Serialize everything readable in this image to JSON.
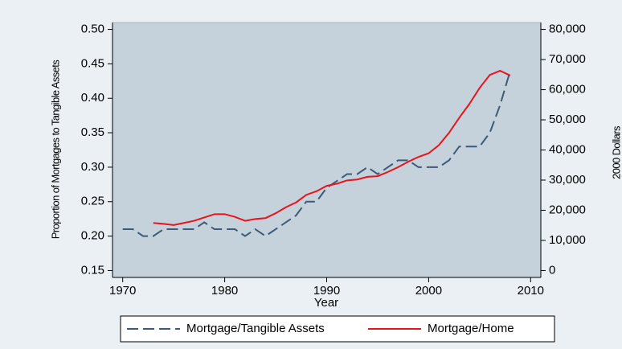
{
  "chart_data": {
    "type": "line",
    "xlabel": "Year",
    "ylabel": "Proportion of Mortgages to Tangible Assets",
    "y2label": "2000 Dollars",
    "xlim": [
      1969,
      2011
    ],
    "xticks": [
      1970,
      1980,
      1990,
      2000,
      2010
    ],
    "ylim": [
      0.14,
      0.51
    ],
    "yticks": [
      {
        "value": 0.15,
        "label": "0.15"
      },
      {
        "value": 0.2,
        "label": "0.20"
      },
      {
        "value": 0.25,
        "label": "0.25"
      },
      {
        "value": 0.3,
        "label": "0.30"
      },
      {
        "value": 0.35,
        "label": "0.35"
      },
      {
        "value": 0.4,
        "label": "0.40"
      },
      {
        "value": 0.45,
        "label": "0.45"
      },
      {
        "value": 0.5,
        "label": "0.50"
      }
    ],
    "y2lim": [
      -2286,
      82286
    ],
    "y2ticks": [
      0,
      {
        "value": 10000,
        "label": "10,000"
      },
      {
        "value": 20000,
        "label": "20,000"
      },
      {
        "value": 30000,
        "label": "30,000"
      },
      {
        "value": 40000,
        "label": "40,000"
      },
      {
        "value": 50000,
        "label": "50,000"
      },
      {
        "value": 60000,
        "label": "60,000"
      },
      {
        "value": 70000,
        "label": "70,000"
      },
      {
        "value": 80000,
        "label": "80,000"
      }
    ],
    "legend": "bottom",
    "series": [
      {
        "name": "Mortgage/Tangible Assets",
        "color": "#3d5a78",
        "line_style": "dashed",
        "x": [
          1970,
          1971,
          1972,
          1973,
          1974,
          1975,
          1976,
          1977,
          1978,
          1979,
          1980,
          1981,
          1982,
          1983,
          1984,
          1985,
          1986,
          1987,
          1988,
          1989,
          1990,
          1991,
          1992,
          1993,
          1994,
          1995,
          1996,
          1997,
          1998,
          1999,
          2000,
          2001,
          2002,
          2003,
          2004,
          2005,
          2006,
          2007,
          2008
        ],
        "values": [
          0.21,
          0.21,
          0.2,
          0.2,
          0.21,
          0.21,
          0.21,
          0.21,
          0.22,
          0.21,
          0.21,
          0.21,
          0.2,
          0.21,
          0.2,
          0.21,
          0.22,
          0.23,
          0.25,
          0.25,
          0.27,
          0.28,
          0.29,
          0.29,
          0.3,
          0.29,
          0.3,
          0.31,
          0.31,
          0.3,
          0.3,
          0.3,
          0.31,
          0.33,
          0.33,
          0.33,
          0.35,
          0.39,
          0.44
        ]
      },
      {
        "name": "Mortgage/Home",
        "color": "#e8141a",
        "line_style": "solid",
        "axis": "y2",
        "x": [
          1973,
          1974,
          1975,
          1976,
          1977,
          1978,
          1979,
          1980,
          1981,
          1982,
          1983,
          1984,
          1985,
          1986,
          1987,
          1988,
          1989,
          1990,
          1991,
          1992,
          1993,
          1994,
          1995,
          1996,
          1997,
          1998,
          1999,
          2000,
          2001,
          2002,
          2003,
          2004,
          2005,
          2006,
          2007,
          2008
        ],
        "values": [
          15800,
          15500,
          15100,
          15800,
          16500,
          17600,
          18700,
          18700,
          17800,
          16500,
          17100,
          17400,
          19000,
          21000,
          22600,
          25100,
          26300,
          28100,
          28800,
          29900,
          30200,
          31100,
          31300,
          32700,
          34300,
          36100,
          37700,
          38900,
          41600,
          45700,
          50700,
          55300,
          60600,
          64900,
          66300,
          64700
        ]
      }
    ]
  }
}
